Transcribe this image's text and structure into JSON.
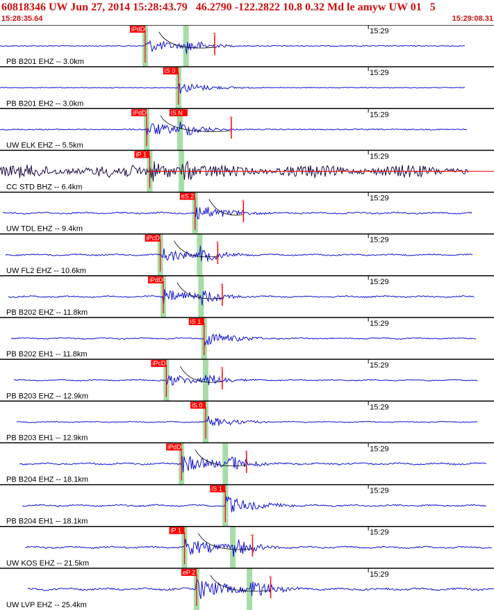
{
  "header": {
    "title": "60818346 UW Jun 27, 2014 15:28:43.79   46.2790 -122.2822 10.8 0.32 Md le amyw UW 01   5",
    "start_time": "15:28:35.64",
    "end_time": "15:29:08.31"
  },
  "colors": {
    "header_text": "#d01010",
    "trace": "#1010d0",
    "trace_dark": "#1a0a40",
    "pick_box": "#ff0000",
    "pick_text": "#ffffff",
    "window_band": "#a8dca8",
    "divider": "#000000",
    "tick_label": "#000000"
  },
  "chart_data": {
    "type": "line",
    "title": "60818346 UW Jun 27, 2014 15:28:43.79   46.2790 -122.2822 10.8 0.32 Md le amyw UW 01   5",
    "xlim": [
      "15:28:35.64",
      "15:29:08.31"
    ],
    "x_unit": "seconds after 15:28:35.64",
    "tick_label": "15:29",
    "tick_time_s": 24.36,
    "series": [
      {
        "name": "PB B201 EHZ -- 3.0km",
        "pick_label": "iPdD",
        "pick_s": 9.6,
        "s_arrival_s": 12.3,
        "end_marker_s": 14.2,
        "amplitude": 0.45,
        "trace_end_s": 30.8
      },
      {
        "name": "PB B201 EH2 -- 3.0km",
        "pick_label": "iS 0",
        "pick_s": 11.8,
        "s_arrival_s": 11.8,
        "amplitude": 0.35,
        "trace_end_s": 30.8
      },
      {
        "name": "UW ELK EHZ -- 5.5km",
        "pick_label": "iPdD",
        "pick_s": 9.7,
        "second_pick_label": "iS N",
        "second_pick_s": 11.3,
        "s_arrival_s": 11.9,
        "end_marker_s": 15.3,
        "amplitude": 0.5,
        "trace_end_s": 30.9
      },
      {
        "name": "CC STD BHZ -- 6.4km",
        "pick_label": "iP 1",
        "pick_s": 9.9,
        "s_arrival_s": 12.0,
        "amplitude": 0.7,
        "trace_end_s": 31.0
      },
      {
        "name": "UW TDL EHZ -- 9.4km",
        "pick_label": "eS 2",
        "pick_s": 12.9,
        "s_arrival_s": 12.9,
        "end_marker_s": 16.1,
        "amplitude": 0.55,
        "trace_end_s": 31.2
      },
      {
        "name": "UW FL2 EHZ -- 10.6km",
        "pick_label": "iPcD",
        "pick_s": 10.6,
        "s_arrival_s": 13.2,
        "end_marker_s": 14.4,
        "amplitude": 0.5,
        "trace_end_s": 31.3
      },
      {
        "name": "PB B202 EHZ -- 11.8km",
        "pick_label": "iPdD",
        "pick_s": 10.8,
        "s_arrival_s": 13.3,
        "end_marker_s": 14.7,
        "amplitude": 0.5,
        "trace_end_s": 31.4
      },
      {
        "name": "PB B202 EH1 -- 11.8km",
        "pick_label": "iS 1",
        "pick_s": 13.5,
        "s_arrival_s": 13.5,
        "amplitude": 0.45,
        "trace_end_s": 31.5
      },
      {
        "name": "PB B203 EHZ -- 12.9km",
        "pick_label": "iPcD",
        "pick_s": 11.0,
        "s_arrival_s": 13.6,
        "end_marker_s": 14.7,
        "amplitude": 0.4,
        "trace_end_s": 31.6
      },
      {
        "name": "PB B203 EH1 -- 12.9km",
        "pick_label": "iS 0",
        "pick_s": 13.6,
        "s_arrival_s": 13.6,
        "amplitude": 0.35,
        "trace_end_s": 31.6
      },
      {
        "name": "PB B204 EHZ -- 18.1km",
        "pick_label": "iPdD",
        "pick_s": 12.0,
        "s_arrival_s": 14.9,
        "end_marker_s": 16.3,
        "amplitude": 0.6,
        "trace_end_s": 32.2
      },
      {
        "name": "PB B204 EH1 -- 18.1km",
        "pick_label": "iS 1",
        "pick_s": 14.9,
        "s_arrival_s": 14.9,
        "amplitude": 0.55,
        "trace_end_s": 32.2
      },
      {
        "name": "UW KOS EHZ -- 21.5km",
        "pick_label": "iP 1",
        "pick_s": 12.2,
        "s_arrival_s": 15.4,
        "end_marker_s": 16.7,
        "amplitude": 0.6,
        "trace_end_s": 32.6
      },
      {
        "name": "UW LVP EHZ -- 25.4km",
        "pick_label": "eP 2",
        "pick_s": 13.0,
        "s_arrival_s": 16.5,
        "end_marker_s": 17.9,
        "amplitude": 0.7,
        "trace_end_s": 32.7
      }
    ]
  }
}
